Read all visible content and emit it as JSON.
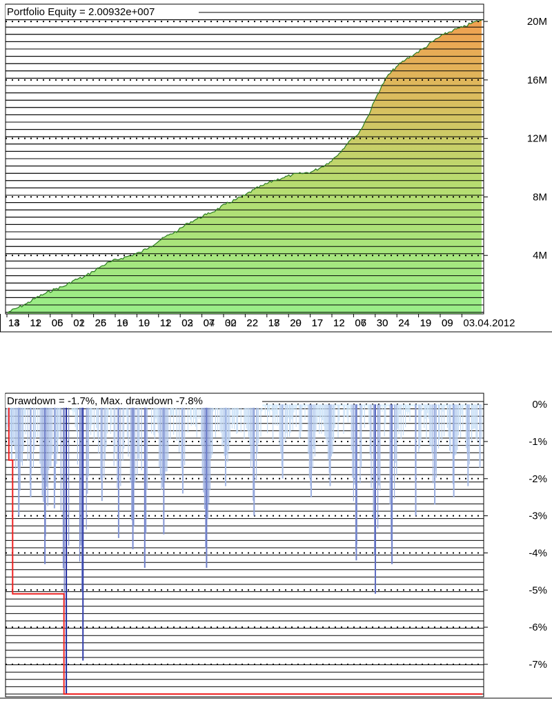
{
  "chart_data": [
    {
      "type": "area",
      "title": "Portfolio Equity = 2.00932e+007",
      "ylim": [
        0,
        20900000
      ],
      "y_ticks": [
        {
          "value": 4000000,
          "label": "4M"
        },
        {
          "value": 8000000,
          "label": "8M"
        },
        {
          "value": 12000000,
          "label": "12M"
        },
        {
          "value": 16000000,
          "label": "16M"
        },
        {
          "value": 20000000,
          "label": "20M"
        }
      ],
      "x_tick_labels": [
        "13",
        "12",
        "06",
        "02",
        "26",
        "16",
        "10",
        "12",
        "02",
        "07",
        "02",
        "22",
        "18",
        "20",
        "17",
        "12",
        "06",
        "30",
        "24",
        "19",
        "09",
        "03.04.2012"
      ],
      "x_tick_overlap": [
        "14",
        "11",
        "05",
        "01",
        "25",
        "19",
        "19",
        "11",
        "03",
        "04",
        "30",
        "22",
        "17",
        "29",
        "17",
        "12",
        "07",
        "30",
        "24",
        "19",
        "09",
        "09"
      ],
      "x": [
        0,
        0.02,
        0.04,
        0.06,
        0.08,
        0.1,
        0.12,
        0.14,
        0.16,
        0.18,
        0.2,
        0.22,
        0.24,
        0.26,
        0.28,
        0.3,
        0.32,
        0.34,
        0.36,
        0.38,
        0.4,
        0.42,
        0.44,
        0.46,
        0.48,
        0.5,
        0.52,
        0.54,
        0.56,
        0.58,
        0.6,
        0.62,
        0.64,
        0.66,
        0.68,
        0.7,
        0.72,
        0.74,
        0.76,
        0.78,
        0.8,
        0.82,
        0.84,
        0.86,
        0.88,
        0.9,
        0.92,
        0.94,
        0.96,
        0.98,
        1.0
      ],
      "values": [
        100000,
        400000,
        700000,
        1100000,
        1400000,
        1700000,
        1900000,
        2300000,
        2500000,
        2900000,
        3300000,
        3600000,
        3800000,
        4000000,
        4200000,
        4600000,
        5000000,
        5400000,
        5700000,
        6200000,
        6500000,
        6800000,
        7100000,
        7500000,
        7800000,
        8100000,
        8500000,
        8800000,
        9100000,
        9300000,
        9500000,
        9600000,
        9700000,
        10000000,
        10400000,
        11000000,
        11800000,
        12300000,
        13500000,
        15000000,
        16200000,
        16900000,
        17400000,
        17800000,
        18200000,
        18700000,
        19100000,
        19400000,
        19600000,
        19900000,
        20093200
      ],
      "color_bottom": "#99ee88",
      "color_top": "#f0a050"
    },
    {
      "type": "bar",
      "title": "Drawdown = -1.7%, Max. drawdown -7.8%",
      "ylim": [
        -7.8,
        0.3
      ],
      "ylabel": "",
      "y_ticks": [
        {
          "value": 0,
          "label": "0%"
        },
        {
          "value": -1,
          "label": "-1%"
        },
        {
          "value": -2,
          "label": "-2%"
        },
        {
          "value": -3,
          "label": "-3%"
        },
        {
          "value": -4,
          "label": "-4%"
        },
        {
          "value": -5,
          "label": "-5%"
        },
        {
          "value": -6,
          "label": "-6%"
        },
        {
          "value": -7,
          "label": "-7%"
        }
      ],
      "drawdown_events": [
        {
          "x": 0.01,
          "depth": -1.5
        },
        {
          "x": 0.025,
          "depth": -3.0
        },
        {
          "x": 0.05,
          "depth": -2.5
        },
        {
          "x": 0.08,
          "depth": -4.3
        },
        {
          "x": 0.1,
          "depth": -2.8
        },
        {
          "x": 0.125,
          "depth": -7.8
        },
        {
          "x": 0.16,
          "depth": -6.9
        },
        {
          "x": 0.2,
          "depth": -2.6
        },
        {
          "x": 0.235,
          "depth": -3.6
        },
        {
          "x": 0.265,
          "depth": -3.9
        },
        {
          "x": 0.29,
          "depth": -4.4
        },
        {
          "x": 0.33,
          "depth": -3.5
        },
        {
          "x": 0.37,
          "depth": -2.4
        },
        {
          "x": 0.42,
          "depth": -4.4
        },
        {
          "x": 0.46,
          "depth": -2.2
        },
        {
          "x": 0.52,
          "depth": -3.0
        },
        {
          "x": 0.58,
          "depth": -2.0
        },
        {
          "x": 0.64,
          "depth": -2.5
        },
        {
          "x": 0.68,
          "depth": -2.2
        },
        {
          "x": 0.735,
          "depth": -4.2
        },
        {
          "x": 0.775,
          "depth": -5.1
        },
        {
          "x": 0.81,
          "depth": -4.3
        },
        {
          "x": 0.86,
          "depth": -3.0
        },
        {
          "x": 0.9,
          "depth": -2.7
        },
        {
          "x": 0.94,
          "depth": -2.5
        },
        {
          "x": 0.97,
          "depth": -2.2
        },
        {
          "x": 0.995,
          "depth": -1.7
        }
      ],
      "max_drawdown_line": [
        {
          "x": 0.0,
          "value": 0
        },
        {
          "x": 0.004,
          "value": 0
        },
        {
          "x": 0.004,
          "value": -1.5
        },
        {
          "x": 0.012,
          "value": -1.5
        },
        {
          "x": 0.012,
          "value": -5.1
        },
        {
          "x": 0.12,
          "value": -5.1
        },
        {
          "x": 0.12,
          "value": -7.8
        },
        {
          "x": 1.0,
          "value": -7.8
        }
      ],
      "color_shallow": "#cceeff",
      "color_deep": "#2233aa",
      "max_line_color": "#ee2222"
    }
  ]
}
